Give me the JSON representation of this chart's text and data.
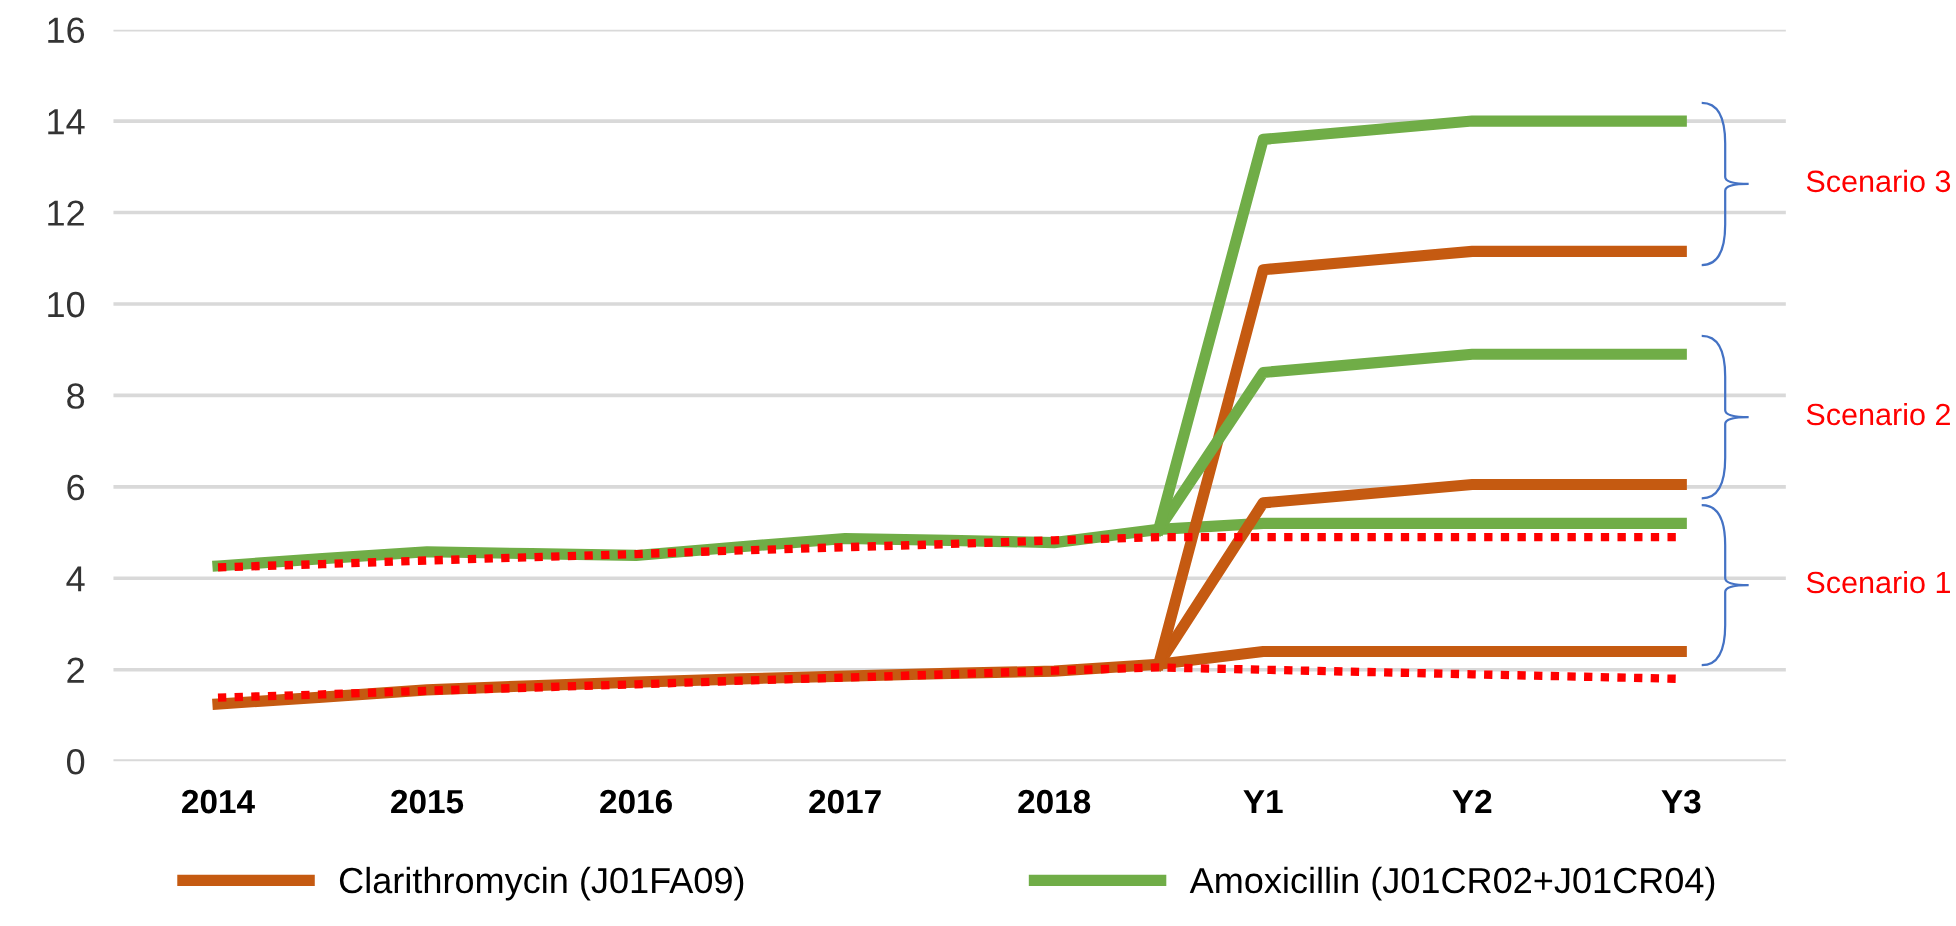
{
  "chart_data": {
    "type": "line",
    "categories": [
      "2014",
      null,
      "2015",
      null,
      "2016",
      null,
      "2017",
      null,
      "2018",
      null,
      "Y1",
      null,
      "Y2",
      null,
      "Y3"
    ],
    "ylim": [
      0,
      16
    ],
    "yticks": [
      0,
      2,
      4,
      6,
      8,
      10,
      12,
      14,
      16
    ],
    "grid": "y",
    "legend": "bottom",
    "marker": "none",
    "line_style": "solid",
    "series": [
      {
        "name": "Clarithromycin (J01FA09)",
        "color": "#c55a11",
        "values": [
          1.25,
          1.4,
          1.56,
          1.65,
          1.73,
          1.8,
          1.86,
          1.92,
          1.97,
          2.12,
          2.4,
          2.4,
          2.4,
          2.4,
          2.4
        ]
      },
      {
        "name": "Amoxicillin (J01CR02+J01CR04)",
        "color": "#70ad47",
        "values": [
          4.27,
          4.43,
          4.58,
          4.54,
          4.5,
          4.69,
          4.87,
          4.83,
          4.78,
          5.07,
          5.2,
          5.2,
          5.2,
          5.2,
          5.2
        ]
      },
      {
        "color": "#c55a11",
        "values": [
          null,
          null,
          null,
          null,
          null,
          null,
          null,
          null,
          null,
          2.12,
          5.65,
          5.85,
          6.05,
          6.05,
          6.05
        ]
      },
      {
        "color": "#c55a11",
        "values": [
          null,
          null,
          null,
          null,
          null,
          null,
          null,
          null,
          null,
          2.12,
          10.75,
          10.95,
          11.15,
          11.15,
          11.15
        ]
      },
      {
        "color": "#70ad47",
        "values": [
          null,
          null,
          null,
          null,
          null,
          null,
          null,
          null,
          null,
          5.07,
          8.5,
          8.7,
          8.9,
          8.9,
          8.9
        ]
      },
      {
        "color": "#70ad47",
        "values": [
          null,
          null,
          null,
          null,
          null,
          null,
          null,
          null,
          null,
          5.07,
          13.6,
          13.8,
          14.0,
          14.0,
          14.0
        ]
      },
      {
        "color": "#ff0000",
        "line_style": "dotted",
        "values": [
          4.24,
          4.31,
          4.39,
          4.46,
          4.53,
          4.61,
          4.68,
          4.75,
          4.83,
          4.9,
          4.9,
          4.9,
          4.9,
          4.9,
          4.9
        ]
      },
      {
        "color": "#ff0000",
        "line_style": "dotted",
        "values": [
          1.39,
          1.46,
          1.54,
          1.61,
          1.68,
          1.76,
          1.83,
          1.9,
          1.98,
          2.05,
          2.0,
          1.95,
          1.9,
          1.85,
          1.8
        ]
      }
    ],
    "annotations": [
      "Scenario 3",
      "Scenario 2",
      "Scenario 1"
    ]
  }
}
